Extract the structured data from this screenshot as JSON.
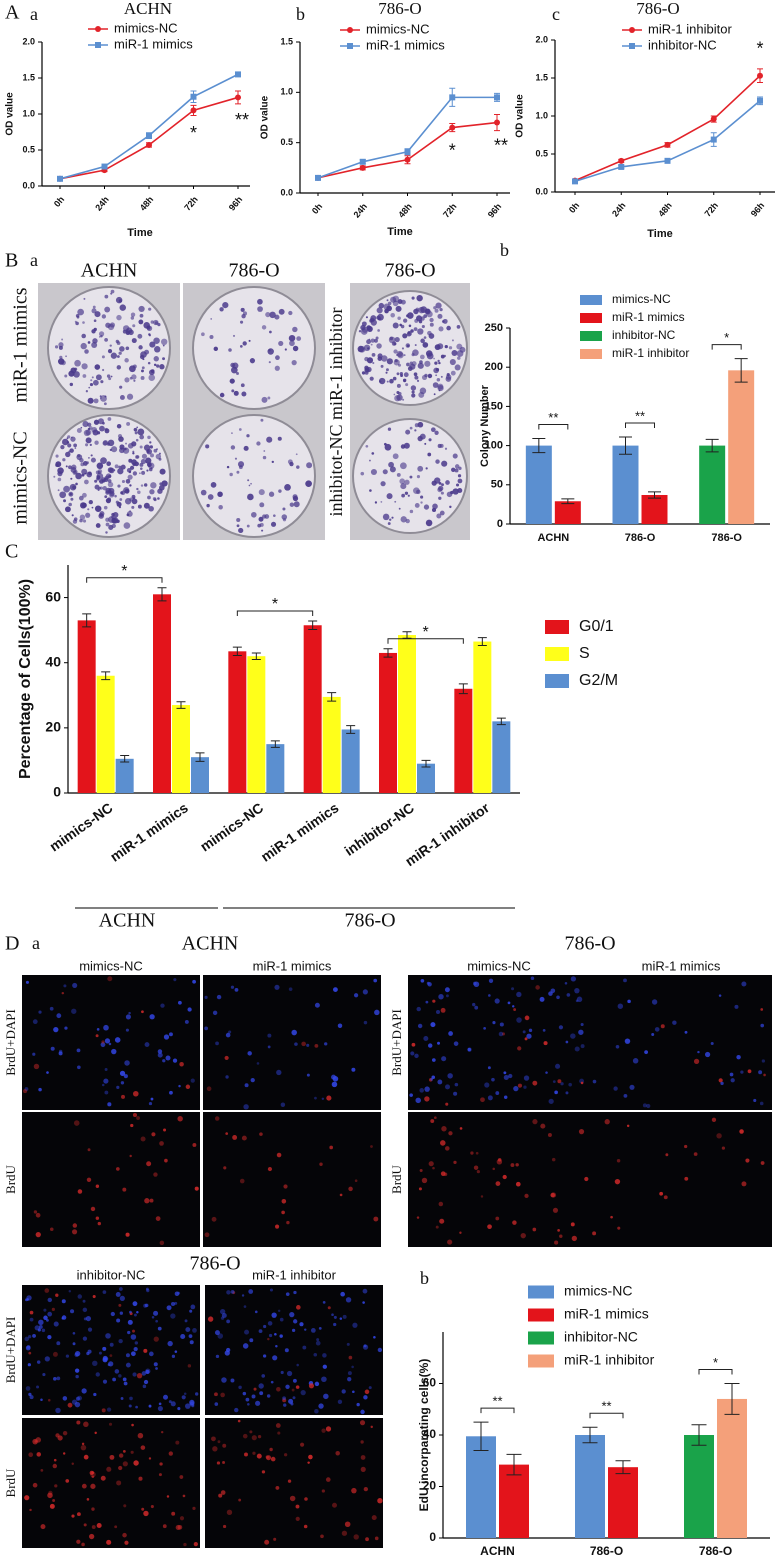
{
  "figure_letters": [
    "A",
    "B",
    "C",
    "D"
  ],
  "colony_photo": {
    "panel": "a",
    "column_titles": [
      "ACHN",
      "786-O",
      "786-O"
    ],
    "row_labels": [
      "miR-1 mimics",
      "mimics-NC"
    ],
    "side_label": "inhibitot-NC miR-1 inhibitor"
  },
  "brdu_photo": {
    "panel": "a",
    "groups": [
      {
        "title": "ACHN",
        "columns": [
          "mimics-NC",
          "miR-1 mimics"
        ],
        "rows": [
          "BrdU+DAPI",
          "BrdU"
        ]
      },
      {
        "title": "786-O",
        "columns": [
          "mimics-NC",
          "miR-1 mimics"
        ],
        "rows": [
          "BrdU+DAPI",
          "BrdU"
        ]
      },
      {
        "title": "786-O",
        "columns": [
          "inhibitor-NC",
          "miR-1 inhibitor"
        ],
        "rows": [
          "BrdU+DAPI",
          "BrdU"
        ]
      }
    ]
  },
  "chart_data": [
    {
      "type": "line",
      "panel": "a",
      "title": "ACHN",
      "xlabel": "Time",
      "ylabel": "OD value",
      "categories": [
        "0h",
        "24h",
        "48h",
        "72h",
        "96h"
      ],
      "series": [
        {
          "name": "mimics-NC",
          "color": "#e2232a",
          "marker": "circle",
          "values": [
            0.1,
            0.22,
            0.57,
            1.05,
            1.23
          ],
          "errors": [
            0.02,
            0.02,
            0.03,
            0.07,
            0.09
          ]
        },
        {
          "name": "miR-1 mimics",
          "color": "#5b8fd0",
          "marker": "square",
          "values": [
            0.1,
            0.27,
            0.7,
            1.24,
            1.55
          ],
          "errors": [
            0.02,
            0.02,
            0.04,
            0.08,
            0.02
          ]
        }
      ],
      "ylim": [
        0,
        2
      ],
      "yticks": [
        {
          "value": 0,
          "label": "0.0"
        },
        0.5,
        {
          "value": 1,
          "label": "1.0"
        },
        1.5,
        {
          "value": 2,
          "label": "2.0"
        }
      ],
      "annotations": [
        "*",
        "**"
      ]
    },
    {
      "type": "line",
      "panel": "b",
      "title": "786-O",
      "xlabel": "Time",
      "ylabel": "OD value",
      "categories": [
        "0h",
        "24h",
        "48h",
        "72h",
        "96h"
      ],
      "series": [
        {
          "name": "mimics-NC",
          "color": "#e2232a",
          "marker": "circle",
          "values": [
            0.15,
            0.25,
            0.33,
            0.65,
            0.7
          ],
          "errors": [
            0.01,
            0.02,
            0.04,
            0.04,
            0.08
          ]
        },
        {
          "name": "miR-1 mimics",
          "color": "#5b8fd0",
          "marker": "square",
          "values": [
            0.15,
            0.31,
            0.41,
            0.95,
            0.95
          ],
          "errors": [
            0.01,
            0.02,
            0.03,
            0.09,
            0.04
          ]
        }
      ],
      "ylim": [
        0,
        1.5
      ],
      "yticks": [
        {
          "value": 0,
          "label": "0.0"
        },
        0.5,
        {
          "value": 1,
          "label": "1.0"
        },
        1.5
      ],
      "annotations": [
        "*",
        "**"
      ]
    },
    {
      "type": "line",
      "panel": "c",
      "title": "786-O",
      "xlabel": "Time",
      "ylabel": "OD value",
      "categories": [
        "0h",
        "24h",
        "48h",
        "72h",
        "96h"
      ],
      "series": [
        {
          "name": "miR-1 inhibitor",
          "color": "#e2232a",
          "marker": "circle",
          "values": [
            0.15,
            0.41,
            0.62,
            0.96,
            1.53
          ],
          "errors": [
            0.02,
            0.02,
            0.03,
            0.04,
            0.09
          ]
        },
        {
          "name": "inhibitor-NC",
          "color": "#5b8fd0",
          "marker": "square",
          "values": [
            0.14,
            0.33,
            0.41,
            0.69,
            1.2
          ],
          "errors": [
            0.02,
            0.02,
            0.02,
            0.09,
            0.05
          ]
        }
      ],
      "ylim": [
        0,
        2
      ],
      "yticks": [
        {
          "value": 0,
          "label": "0.0"
        },
        0.5,
        {
          "value": 1,
          "label": "1.0"
        },
        1.5,
        {
          "value": 2,
          "label": "2.0"
        }
      ],
      "annotations": [
        "*"
      ]
    },
    {
      "type": "bar",
      "panel": "b",
      "ylabel": "Colony Number",
      "categories": [
        "ACHN",
        "786-O",
        "786-O"
      ],
      "series": [
        {
          "name": "mimics-NC",
          "color": "#5b8fd0",
          "values": [
            100,
            100,
            null
          ],
          "errors": [
            9,
            11,
            null
          ]
        },
        {
          "name": "miR-1 mimics",
          "color": "#e3141b",
          "values": [
            29,
            37,
            null
          ],
          "errors": [
            3,
            4,
            null
          ]
        },
        {
          "name": "inhibitor-NC",
          "color": "#1aa34a",
          "values": [
            null,
            null,
            100
          ],
          "errors": [
            null,
            null,
            8
          ]
        },
        {
          "name": "miR-1 inhibitor",
          "color": "#f4a07a",
          "values": [
            null,
            null,
            196
          ],
          "errors": [
            null,
            null,
            15
          ]
        }
      ],
      "ylim": [
        0,
        250
      ],
      "yticks": [
        0,
        50,
        100,
        150,
        200,
        250
      ],
      "significance": [
        "**",
        "**",
        "*"
      ]
    },
    {
      "type": "bar",
      "ylabel": "Percentage of Cells(100%)",
      "categories": [
        "mimics-NC",
        "miR-1 mimics",
        "mimics-NC",
        "miR-1 mimics",
        "inhibitor-NC",
        "miR-1 inhibitor"
      ],
      "groups": [
        "ACHN",
        "786-O"
      ],
      "series": [
        {
          "name": "G0/1",
          "color": "#e3141b",
          "values": [
            53,
            61,
            43.5,
            51.5,
            43,
            32
          ],
          "errors": [
            2,
            2,
            1.3,
            1.3,
            1.3,
            1.5
          ]
        },
        {
          "name": "S",
          "color": "#ffff1a",
          "values": [
            36,
            27,
            42,
            29.5,
            48.5,
            46.5
          ],
          "errors": [
            1.2,
            1,
            1,
            1.3,
            1,
            1.2
          ]
        },
        {
          "name": "G2/M",
          "color": "#5b8fd0",
          "values": [
            10.5,
            11,
            15,
            19.5,
            9,
            22
          ],
          "errors": [
            1,
            1.3,
            1,
            1.2,
            1,
            1
          ]
        }
      ],
      "ylim": [
        0,
        70
      ],
      "yticks": [
        0,
        20,
        40,
        60
      ],
      "significance": [
        "*",
        "*",
        "*"
      ]
    },
    {
      "type": "bar",
      "panel": "b",
      "ylabel": "EdU incorparating cells(%)",
      "categories": [
        "ACHN",
        "786-O",
        "786-O"
      ],
      "series": [
        {
          "name": "mimics-NC",
          "color": "#5b8fd0",
          "values": [
            39.5,
            40,
            null
          ],
          "errors": [
            5.5,
            3,
            null
          ]
        },
        {
          "name": "miR-1 mimics",
          "color": "#e3141b",
          "values": [
            28.5,
            27.5,
            null
          ],
          "errors": [
            4,
            2.5,
            null
          ]
        },
        {
          "name": "inhibitor-NC",
          "color": "#1aa34a",
          "values": [
            null,
            null,
            40
          ],
          "errors": [
            null,
            null,
            4
          ]
        },
        {
          "name": "miR-1 inhibitor",
          "color": "#f4a07a",
          "values": [
            null,
            null,
            54
          ],
          "errors": [
            null,
            null,
            6
          ]
        }
      ],
      "ylim": [
        0,
        80
      ],
      "yticks": [
        0,
        20,
        40,
        60
      ],
      "significance": [
        "**",
        "**",
        "*"
      ]
    }
  ]
}
